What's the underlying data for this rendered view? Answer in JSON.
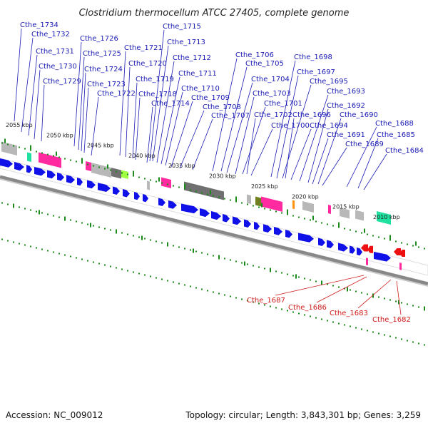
{
  "title": "Clostridium thermocellum ATCC 27405, complete genome",
  "footer": {
    "accession": "Accession: NC_009012",
    "summary": "Topology: circular; Length: 3,843,301 bp; Genes: 3,259"
  },
  "colors": {
    "label_forward": "#1a1ab4",
    "label_reverse": "#d01818",
    "gene_forward": "#1010e8",
    "gene_reverse": "#ee1010",
    "backbone": "#888888",
    "ticks": "#1a8a1a",
    "magenta": "#ff2aa0",
    "teal": "#20e0a0",
    "gray": "#b8b8b8",
    "darkgray": "#707070",
    "olive": "#708020",
    "lime": "#a0ff40",
    "orange": "#ff9010"
  },
  "kbp_ticks": [
    "2055 kbp",
    "2050 kbp",
    "2045 kbp",
    "2040 kbp",
    "2035 kbp",
    "2030 kbp",
    "2025 kbp",
    "2020 kbp",
    "2015 kbp",
    "2010 kbp"
  ],
  "forward_labels": [
    "Cthe_1734",
    "Cthe_1732",
    "Cthe_1731",
    "Cthe_1730",
    "Cthe_1729",
    "Cthe_1726",
    "Cthe_1725",
    "Cthe_1724",
    "Cthe_1723",
    "Cthe_1722",
    "Cthe_1721",
    "Cthe_1720",
    "Cthe_1719",
    "Cthe_1718",
    "Cthe_1715",
    "Cthe_1713",
    "Cthe_1714",
    "Cthe_1712",
    "Cthe_1711",
    "Cthe_1710",
    "Cthe_1709",
    "Cthe_1708",
    "Cthe_1707",
    "Cthe_1706",
    "Cthe_1705",
    "Cthe_1704",
    "Cthe_1703",
    "Cthe_1701",
    "Cthe_1702",
    "Cthe_1700",
    "Cthe_1698",
    "Cthe_1697",
    "Cthe_1695",
    "Cthe_1696",
    "Cthe_1693",
    "Cthe_1694",
    "Cthe_1692",
    "Cthe_1691",
    "Cthe_1690",
    "Cthe_1689",
    "Cthe_1688",
    "Cthe_1685",
    "Cthe_1684"
  ],
  "reverse_labels": [
    "Cthe_1687",
    "Cthe_1686",
    "Cthe_1683",
    "Cthe_1682"
  ]
}
